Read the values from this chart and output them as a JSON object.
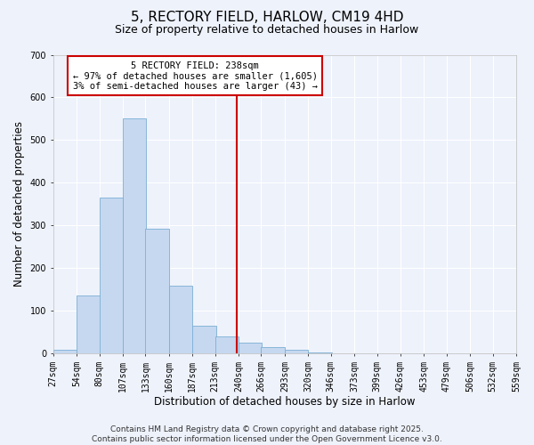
{
  "title": "5, RECTORY FIELD, HARLOW, CM19 4HD",
  "subtitle": "Size of property relative to detached houses in Harlow",
  "xlabel": "Distribution of detached houses by size in Harlow",
  "ylabel": "Number of detached properties",
  "bar_color": "#c5d8f0",
  "bar_edge_color": "#7bafd4",
  "background_color": "#eef2fb",
  "grid_color": "#ffffff",
  "bin_edges": [
    27,
    54,
    80,
    107,
    133,
    160,
    187,
    213,
    240,
    266,
    293,
    320,
    346,
    373,
    399,
    426,
    453,
    479,
    506,
    532,
    559
  ],
  "bar_heights": [
    10,
    137,
    365,
    550,
    293,
    160,
    65,
    40,
    25,
    15,
    10,
    3,
    1,
    0,
    0,
    0,
    0,
    0,
    0,
    0
  ],
  "vline_x": 238,
  "vline_color": "#cc0000",
  "annotation_title": "5 RECTORY FIELD: 238sqm",
  "annotation_line1": "← 97% of detached houses are smaller (1,605)",
  "annotation_line2": "3% of semi-detached houses are larger (43) →",
  "annotation_box_color": "#cc0000",
  "ylim": [
    0,
    700
  ],
  "yticks": [
    0,
    100,
    200,
    300,
    400,
    500,
    600,
    700
  ],
  "tick_labels": [
    "27sqm",
    "54sqm",
    "80sqm",
    "107sqm",
    "133sqm",
    "160sqm",
    "187sqm",
    "213sqm",
    "240sqm",
    "266sqm",
    "293sqm",
    "320sqm",
    "346sqm",
    "373sqm",
    "399sqm",
    "426sqm",
    "453sqm",
    "479sqm",
    "506sqm",
    "532sqm",
    "559sqm"
  ],
  "footer1": "Contains HM Land Registry data © Crown copyright and database right 2025.",
  "footer2": "Contains public sector information licensed under the Open Government Licence v3.0.",
  "title_fontsize": 11,
  "subtitle_fontsize": 9,
  "axis_label_fontsize": 8.5,
  "tick_fontsize": 7,
  "footer_fontsize": 6.5,
  "annot_fontsize": 7.5
}
